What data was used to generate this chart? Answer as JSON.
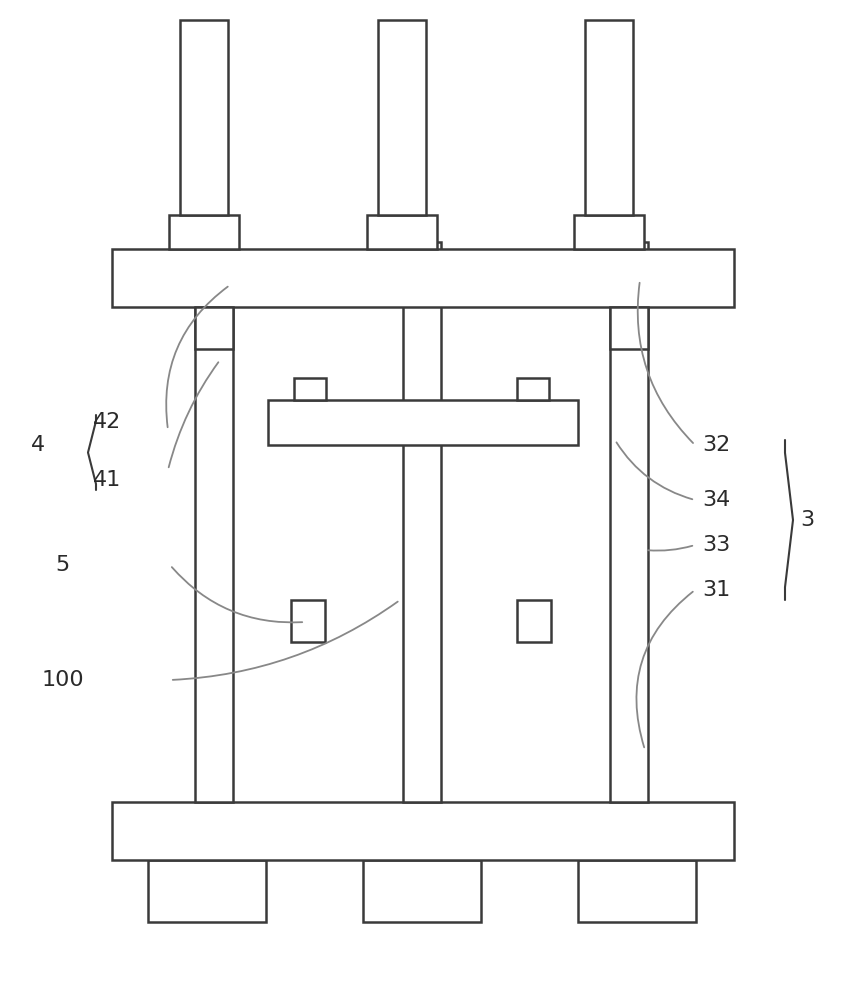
{
  "bg_color": "#ffffff",
  "line_color": "#3a3a3a",
  "label_color": "#2a2a2a",
  "lw": 1.8,
  "lw2": 1.3,
  "leader_color": "#888888",
  "figsize": [
    8.47,
    10.0
  ],
  "dpi": 100
}
